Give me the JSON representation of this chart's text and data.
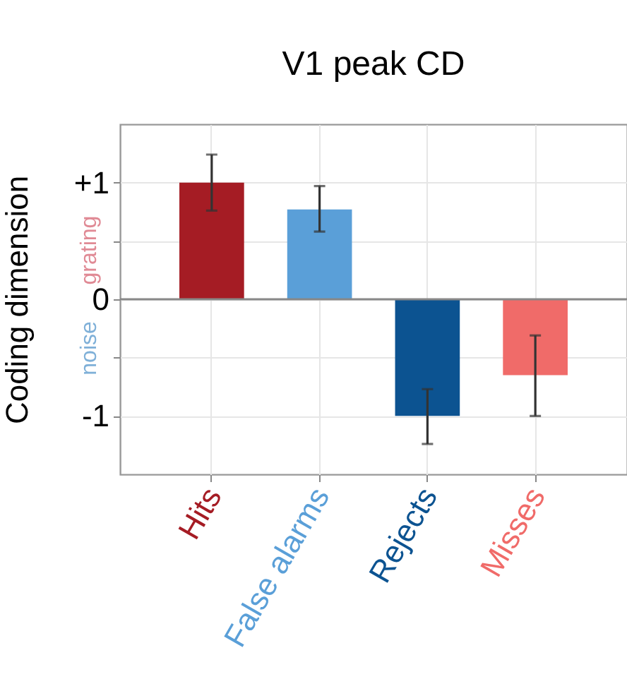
{
  "chart_data": {
    "type": "bar",
    "title": "V1 peak CD",
    "ylabel": "Coding dimension",
    "categories": [
      "Hits",
      "False alarms",
      "Rejects",
      "Misses"
    ],
    "values": [
      1.0,
      0.77,
      -1.0,
      -0.65
    ],
    "colors": [
      "#a51c24",
      "#5a9fd8",
      "#0c5391",
      "#f06b69"
    ],
    "errors": [
      [
        0.76,
        1.24
      ],
      [
        0.58,
        0.97
      ],
      [
        -1.24,
        -0.77
      ],
      [
        -1.0,
        -0.31
      ]
    ],
    "ylim": [
      -1.5,
      1.5
    ],
    "yticks": [
      {
        "value": -1,
        "label": "-1"
      },
      {
        "value": -0.5,
        "label": null
      },
      0,
      {
        "value": 0.5,
        "label": null
      },
      {
        "value": 1,
        "label": "+1"
      }
    ],
    "grid": true,
    "ref_lines": [
      {
        "axis": "y",
        "value": 0,
        "color": "#888888"
      }
    ],
    "annotations": [
      "grating",
      "noise"
    ]
  }
}
